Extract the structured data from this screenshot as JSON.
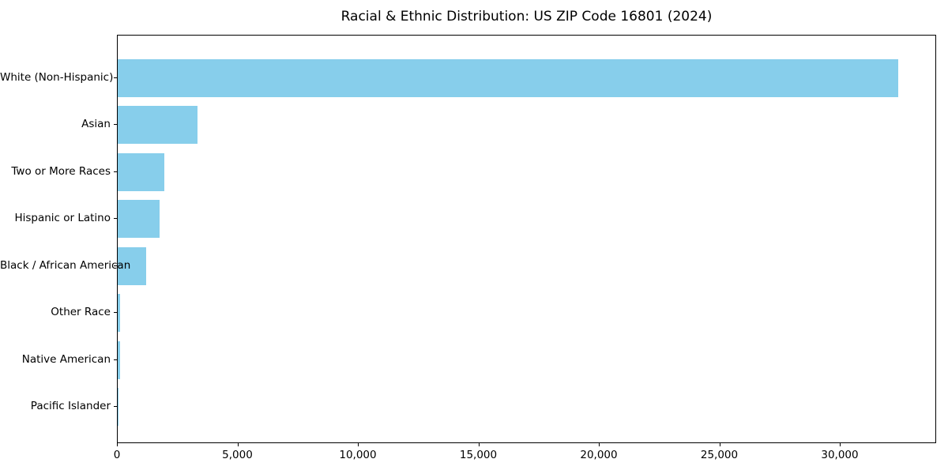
{
  "figure": {
    "background": "#ffffff"
  },
  "chart_data": {
    "type": "bar",
    "orientation": "horizontal",
    "title": "Racial & Ethnic Distribution: US ZIP Code 16801 (2024)",
    "categories": [
      "White (Non-Hispanic)",
      "Asian",
      "Two or More Races",
      "Hispanic or Latino",
      "Black / African American",
      "Other Race",
      "Native American",
      "Pacific Islander"
    ],
    "values": [
      32400,
      3300,
      1950,
      1740,
      1180,
      90,
      85,
      10
    ],
    "xlabel": "",
    "ylabel": "",
    "xlim": [
      0,
      34000
    ],
    "xticks": {
      "values": [
        0,
        5000,
        10000,
        15000,
        20000,
        25000,
        30000
      ],
      "labels": [
        "0",
        "5,000",
        "10,000",
        "15,000",
        "20,000",
        "25,000",
        "30,000"
      ]
    },
    "grid": false,
    "legend": null,
    "bar_color": "#87CEEB",
    "axis_color": "#000000",
    "text_color": "#000000",
    "plot_background": "#ffffff"
  }
}
